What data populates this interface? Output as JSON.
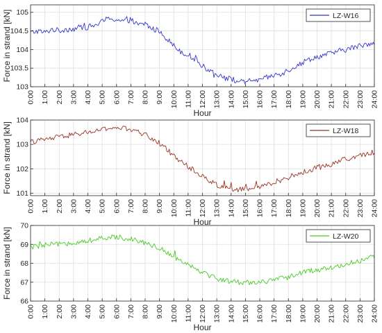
{
  "chart_data": [
    {
      "type": "line",
      "xlabel": "Hour",
      "ylabel": "Force in strand [kN]",
      "x_ticks": [
        "0:00",
        "1:00",
        "2:00",
        "3:00",
        "4:00",
        "5:00",
        "6:00",
        "7:00",
        "8:00",
        "9:00",
        "10:00",
        "11:00",
        "12:00",
        "13:00",
        "14:00",
        "15:00",
        "16:00",
        "17:00",
        "18:00",
        "19:00",
        "20:00",
        "21:00",
        "22:00",
        "23:00",
        "24:00"
      ],
      "y_ticks": [
        "103",
        "103.5",
        "104",
        "104.5",
        "105"
      ],
      "xlim": [
        0,
        24
      ],
      "ylim": [
        103,
        105.2
      ],
      "grid": true,
      "legend": "top-right",
      "series": [
        {
          "name": "LZ-W16",
          "color": "#3333cc",
          "x": [
            0,
            0.5,
            1,
            1.5,
            2,
            2.5,
            3,
            3.5,
            4,
            4.5,
            5,
            5.5,
            6,
            6.5,
            7,
            7.5,
            8,
            8.5,
            9,
            9.5,
            10,
            10.5,
            11,
            11.5,
            12,
            12.5,
            13,
            13.5,
            14,
            14.5,
            15,
            15.5,
            16,
            16.5,
            17,
            17.5,
            18,
            18.5,
            19,
            19.5,
            20,
            20.5,
            21,
            21.5,
            22,
            22.5,
            23,
            23.5,
            24
          ],
          "values": [
            104.45,
            104.5,
            104.45,
            104.55,
            104.5,
            104.55,
            104.55,
            104.6,
            104.6,
            104.65,
            104.75,
            104.85,
            104.8,
            104.75,
            104.8,
            104.65,
            104.7,
            104.55,
            104.5,
            104.3,
            104.1,
            103.95,
            103.85,
            103.75,
            103.55,
            103.45,
            103.35,
            103.25,
            103.2,
            103.15,
            103.1,
            103.2,
            103.15,
            103.25,
            103.3,
            103.35,
            103.45,
            103.55,
            103.65,
            103.75,
            103.8,
            103.85,
            103.9,
            103.95,
            104.0,
            104.05,
            104.1,
            104.15,
            104.2
          ]
        }
      ]
    },
    {
      "type": "line",
      "xlabel": "Hour",
      "ylabel": "Force in strand [kN]",
      "x_ticks": [
        "0:00",
        "1:00",
        "2:00",
        "3:00",
        "4:00",
        "5:00",
        "6:00",
        "7:00",
        "8:00",
        "9:00",
        "10:00",
        "11:00",
        "12:00",
        "13:00",
        "14:00",
        "15:00",
        "16:00",
        "17:00",
        "18:00",
        "19:00",
        "20:00",
        "21:00",
        "22:00",
        "23:00",
        "24:00"
      ],
      "y_ticks": [
        "101",
        "102",
        "103",
        "104"
      ],
      "xlim": [
        0,
        24
      ],
      "ylim": [
        100.9,
        104
      ],
      "grid": true,
      "legend": "top-right",
      "series": [
        {
          "name": "LZ-W18",
          "color": "#993322",
          "x": [
            0,
            0.5,
            1,
            1.5,
            2,
            2.5,
            3,
            3.5,
            4,
            4.5,
            5,
            5.5,
            6,
            6.5,
            7,
            7.5,
            8,
            8.5,
            9,
            9.5,
            10,
            10.5,
            11,
            11.5,
            12,
            12.5,
            13,
            13.5,
            14,
            14.5,
            15,
            15.5,
            16,
            16.5,
            17,
            17.5,
            18,
            18.5,
            19,
            19.5,
            20,
            20.5,
            21,
            21.5,
            22,
            22.5,
            23,
            23.5,
            24
          ],
          "values": [
            103.1,
            103.15,
            103.2,
            103.25,
            103.3,
            103.35,
            103.4,
            103.45,
            103.5,
            103.55,
            103.6,
            103.65,
            103.7,
            103.65,
            103.6,
            103.5,
            103.4,
            103.25,
            103.05,
            102.8,
            102.55,
            102.3,
            102.1,
            101.9,
            101.7,
            101.5,
            101.35,
            101.25,
            101.2,
            101.15,
            101.15,
            101.2,
            101.25,
            101.35,
            101.45,
            101.55,
            101.65,
            101.75,
            101.85,
            101.95,
            102.05,
            102.1,
            102.2,
            102.3,
            102.4,
            102.45,
            102.55,
            102.6,
            102.7
          ]
        }
      ]
    },
    {
      "type": "line",
      "xlabel": "Hour",
      "ylabel": "Force in strand [kN]",
      "x_ticks": [
        "0:00",
        "1:00",
        "2:00",
        "3:00",
        "4:00",
        "5:00",
        "6:00",
        "7:00",
        "8:00",
        "9:00",
        "10:00",
        "11:00",
        "12:00",
        "13:00",
        "14:00",
        "15:00",
        "16:00",
        "17:00",
        "18:00",
        "19:00",
        "20:00",
        "21:00",
        "22:00",
        "23:00",
        "24:00"
      ],
      "y_ticks": [
        "66",
        "67",
        "68",
        "69",
        "70"
      ],
      "xlim": [
        0,
        24
      ],
      "ylim": [
        66,
        70
      ],
      "grid": true,
      "legend": "top-right",
      "series": [
        {
          "name": "LZ-W20",
          "color": "#44cc22",
          "x": [
            0,
            0.5,
            1,
            1.5,
            2,
            2.5,
            3,
            3.5,
            4,
            4.5,
            5,
            5.5,
            6,
            6.5,
            7,
            7.5,
            8,
            8.5,
            9,
            9.5,
            10,
            10.5,
            11,
            11.5,
            12,
            12.5,
            13,
            13.5,
            14,
            14.5,
            15,
            15.5,
            16,
            16.5,
            17,
            17.5,
            18,
            18.5,
            19,
            19.5,
            20,
            20.5,
            21,
            21.5,
            22,
            22.5,
            23,
            23.5,
            24
          ],
          "values": [
            68.85,
            68.9,
            68.95,
            69.0,
            69.0,
            69.05,
            69.1,
            69.15,
            69.2,
            69.25,
            69.3,
            69.35,
            69.4,
            69.35,
            69.3,
            69.2,
            69.1,
            68.95,
            68.8,
            68.6,
            68.35,
            68.15,
            67.95,
            67.75,
            67.55,
            67.35,
            67.2,
            67.1,
            67.05,
            67.0,
            67.0,
            67.0,
            67.0,
            67.05,
            67.1,
            67.2,
            67.3,
            67.4,
            67.5,
            67.6,
            67.65,
            67.7,
            67.75,
            67.85,
            67.95,
            68.05,
            68.15,
            68.25,
            68.35
          ]
        }
      ]
    }
  ]
}
